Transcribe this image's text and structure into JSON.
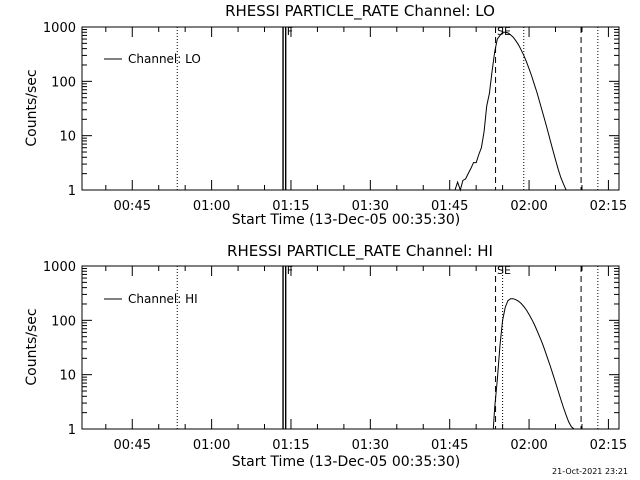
{
  "timestamp": "21-Oct-2021 23:21",
  "chart_data": [
    {
      "type": "line",
      "title": "RHESSI PARTICLE_RATE Channel: LO",
      "xlabel": "Start Time (13-Dec-05 00:35:30)",
      "ylabel": "Counts/sec",
      "yscale": "log",
      "xlim": [
        "00:35:30",
        "02:17:00"
      ],
      "ylim": [
        1,
        1000
      ],
      "x_ticks": [
        "00:45",
        "01:00",
        "01:15",
        "01:30",
        "01:45",
        "02:00",
        "02:15"
      ],
      "y_ticks": [
        "1",
        "10",
        "100",
        "1000"
      ],
      "legend_placement": "top-left",
      "series": [
        {
          "name": "Channel: LO",
          "x": [
            "01:46:00",
            "01:46:30",
            "01:47:00",
            "01:47:30",
            "01:48:00",
            "01:48:30",
            "01:49:00",
            "01:49:30",
            "01:50:00",
            "01:50:30",
            "01:51:00",
            "01:51:30",
            "01:52:00",
            "01:52:30",
            "01:53:00",
            "01:53:30",
            "01:54:00",
            "01:54:30",
            "01:55:00",
            "01:55:30",
            "01:56:00",
            "01:56:30",
            "01:57:00",
            "01:57:30",
            "01:58:00",
            "01:58:30",
            "01:59:00",
            "01:59:30",
            "02:00:00",
            "02:00:30",
            "02:01:00",
            "02:01:30",
            "02:02:00",
            "02:02:30",
            "02:03:00",
            "02:03:30",
            "02:04:00",
            "02:04:30",
            "02:05:00",
            "02:05:30",
            "02:06:00",
            "02:06:30",
            "02:07:00",
            "02:07:30",
            "02:08:00",
            "02:08:30"
          ],
          "values": [
            1.0,
            1.4,
            1.0,
            1.5,
            1.6,
            2.0,
            2.5,
            3.2,
            3.2,
            4.5,
            6.0,
            12,
            35,
            60,
            150,
            350,
            600,
            700,
            800,
            800,
            780,
            720,
            650,
            560,
            470,
            380,
            300,
            230,
            170,
            125,
            88,
            62,
            42,
            28,
            19,
            12.5,
            8.2,
            5.4,
            3.6,
            2.4,
            1.7,
            1.3,
            1.0,
            1.0,
            1.0,
            1.0
          ]
        }
      ],
      "spikes": [
        {
          "x": "01:13:30",
          "y": 1000
        },
        {
          "x": "01:14:00",
          "y": 1000
        }
      ],
      "vlines_dotted": [
        "00:53:30",
        "01:59:00",
        "02:13:00"
      ],
      "vlines_dashed": [
        "01:53:40",
        "02:09:50"
      ],
      "flags": [
        {
          "label": "F",
          "x": "01:14:00"
        },
        {
          "label": "SE",
          "x": "01:53:45"
        }
      ]
    },
    {
      "type": "line",
      "title": "RHESSI PARTICLE_RATE Channel: HI",
      "xlabel": "Start Time (13-Dec-05 00:35:30)",
      "ylabel": "Counts/sec",
      "yscale": "log",
      "xlim": [
        "00:35:30",
        "02:17:00"
      ],
      "ylim": [
        1,
        1000
      ],
      "x_ticks": [
        "00:45",
        "01:00",
        "01:15",
        "01:30",
        "01:45",
        "02:00",
        "02:15"
      ],
      "y_ticks": [
        "1",
        "10",
        "100",
        "1000"
      ],
      "legend_placement": "top-left",
      "series": [
        {
          "name": "Channel: HI",
          "x": [
            "01:53:15",
            "01:53:30",
            "01:54:00",
            "01:54:30",
            "01:55:00",
            "01:55:30",
            "01:56:00",
            "01:56:30",
            "01:57:00",
            "01:57:30",
            "01:58:00",
            "01:58:30",
            "01:59:00",
            "01:59:30",
            "02:00:00",
            "02:00:30",
            "02:01:00",
            "02:01:30",
            "02:02:00",
            "02:02:30",
            "02:03:00",
            "02:03:30",
            "02:04:00",
            "02:04:30",
            "02:05:00",
            "02:05:30",
            "02:06:00",
            "02:06:30",
            "02:07:00",
            "02:07:30",
            "02:08:00",
            "02:08:30",
            "02:09:00",
            "02:09:30"
          ],
          "values": [
            1.0,
            2.5,
            8,
            35,
            100,
            175,
            230,
            250,
            250,
            240,
            225,
            205,
            180,
            155,
            128,
            105,
            84,
            65,
            50,
            38,
            28,
            20,
            14.5,
            10.2,
            7.2,
            5.0,
            3.5,
            2.5,
            1.8,
            1.35,
            1.1,
            1.0,
            1.0,
            1.0
          ]
        }
      ],
      "spikes": [
        {
          "x": "01:13:30",
          "y": 1000
        },
        {
          "x": "01:14:00",
          "y": 1000
        }
      ],
      "vlines_dotted": [
        "00:53:30",
        "01:55:00",
        "02:13:00"
      ],
      "vlines_dashed": [
        "01:53:40",
        "02:09:50"
      ],
      "flags": [
        {
          "label": "F",
          "x": "01:14:00"
        },
        {
          "label": "SE",
          "x": "01:53:45"
        }
      ]
    }
  ]
}
